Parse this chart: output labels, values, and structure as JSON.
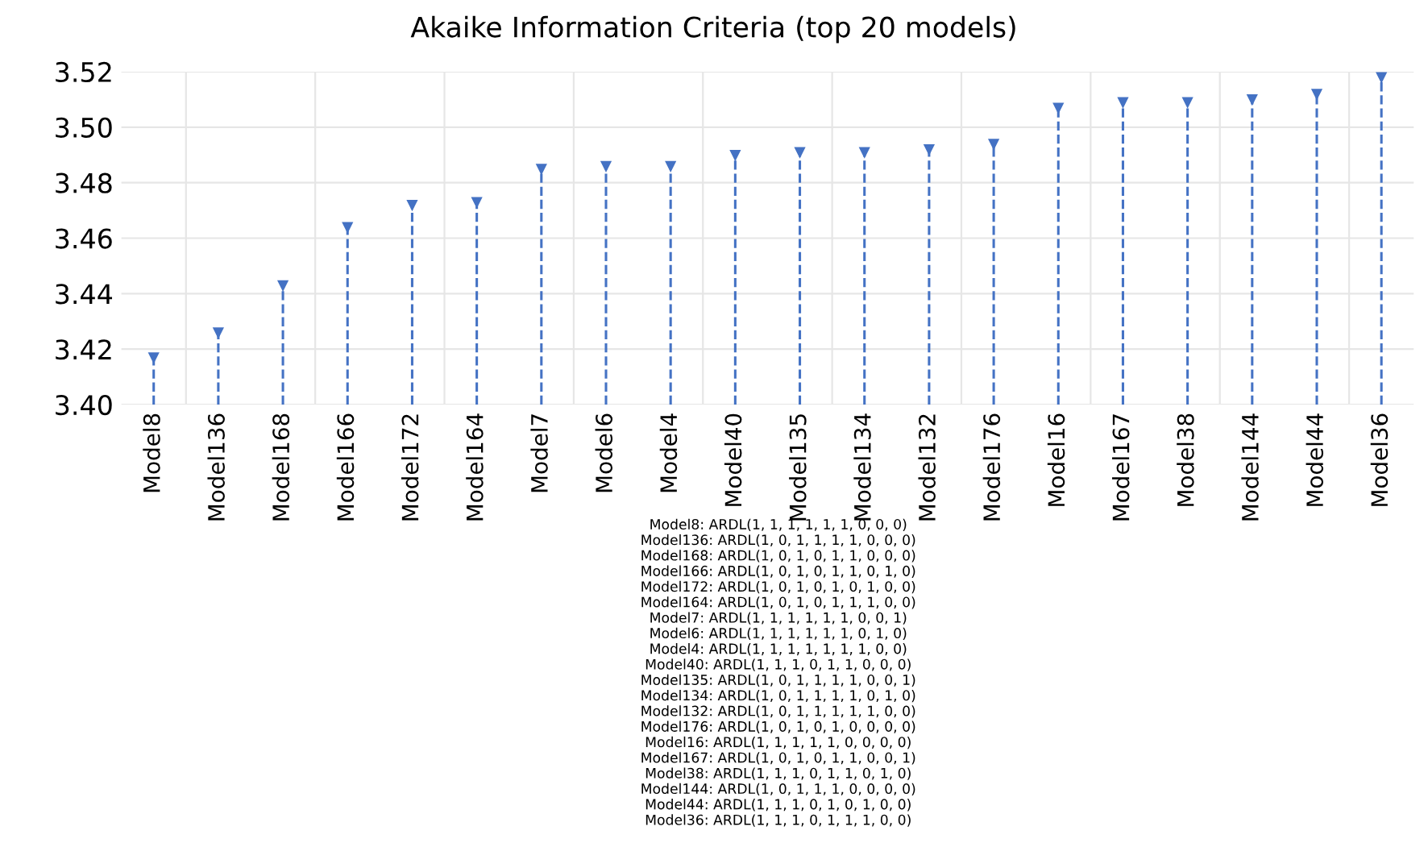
{
  "chart_data": {
    "type": "lollipop",
    "title": "Akaike Information Criteria (top 20 models)",
    "categories": [
      "Model8",
      "Model136",
      "Model168",
      "Model166",
      "Model172",
      "Model164",
      "Model7",
      "Model6",
      "Model4",
      "Model40",
      "Model135",
      "Model134",
      "Model132",
      "Model176",
      "Model16",
      "Model167",
      "Model38",
      "Model144",
      "Model44",
      "Model36"
    ],
    "values": [
      3.417,
      3.426,
      3.443,
      3.464,
      3.472,
      3.473,
      3.485,
      3.486,
      3.486,
      3.49,
      3.491,
      3.491,
      3.492,
      3.494,
      3.507,
      3.509,
      3.509,
      3.51,
      3.512,
      3.518
    ],
    "color": "#4472c4",
    "ylim": [
      3.4,
      3.52
    ],
    "yticks": [
      {
        "value": 3.4,
        "label": "3.40"
      },
      {
        "value": 3.42,
        "label": "3.42"
      },
      {
        "value": 3.44,
        "label": "3.44"
      },
      {
        "value": 3.46,
        "label": "3.46"
      },
      {
        "value": 3.48,
        "label": "3.48"
      },
      {
        "value": 3.5,
        "label": "3.50"
      },
      {
        "value": 3.52,
        "label": "3.52"
      }
    ],
    "grid": true,
    "marker": "triangle",
    "line_style": "dashed",
    "annotations": [
      "Model8: ARDL(1, 1, 1, 1, 1, 1, 0, 0, 0)",
      "Model136: ARDL(1, 0, 1, 1, 1, 1, 0, 0, 0)",
      "Model168: ARDL(1, 0, 1, 0, 1, 1, 0, 0, 0)",
      "Model166: ARDL(1, 0, 1, 0, 1, 1, 0, 1, 0)",
      "Model172: ARDL(1, 0, 1, 0, 1, 0, 1, 0, 0)",
      "Model164: ARDL(1, 0, 1, 0, 1, 1, 1, 0, 0)",
      "Model7: ARDL(1, 1, 1, 1, 1, 1, 0, 0, 1)",
      "Model6: ARDL(1, 1, 1, 1, 1, 1, 0, 1, 0)",
      "Model4: ARDL(1, 1, 1, 1, 1, 1, 1, 0, 0)",
      "Model40: ARDL(1, 1, 1, 0, 1, 1, 0, 0, 0)",
      "Model135: ARDL(1, 0, 1, 1, 1, 1, 0, 0, 1)",
      "Model134: ARDL(1, 0, 1, 1, 1, 1, 0, 1, 0)",
      "Model132: ARDL(1, 0, 1, 1, 1, 1, 1, 0, 0)",
      "Model176: ARDL(1, 0, 1, 0, 1, 0, 0, 0, 0)",
      "Model16: ARDL(1, 1, 1, 1, 1, 0, 0, 0, 0)",
      "Model167: ARDL(1, 0, 1, 0, 1, 1, 0, 0, 1)",
      "Model38: ARDL(1, 1, 1, 0, 1, 1, 0, 1, 0)",
      "Model144: ARDL(1, 0, 1, 1, 1, 0, 0, 0, 0)",
      "Model44: ARDL(1, 1, 1, 0, 1, 0, 1, 0, 0)",
      "Model36: ARDL(1, 1, 1, 0, 1, 1, 1, 0, 0)"
    ]
  }
}
